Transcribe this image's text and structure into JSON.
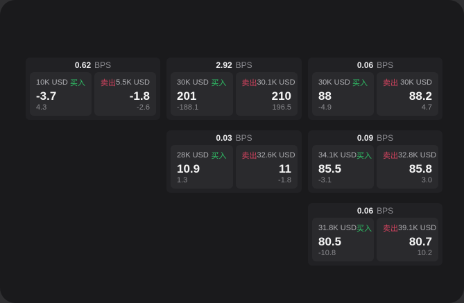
{
  "labels": {
    "bps_unit": "BPS",
    "buy": "买入",
    "sell": "卖出"
  },
  "colors": {
    "buy_green": "#2fbf66",
    "sell_red": "#d0435e"
  },
  "cards": [
    {
      "bps": "0.62",
      "buy": {
        "amount": "10K USD",
        "price": "-3.7",
        "delta": "4.3"
      },
      "sell": {
        "amount": "5.5K USD",
        "price": "-1.8",
        "delta": "-2.6"
      }
    },
    {
      "bps": "2.92",
      "buy": {
        "amount": "30K USD",
        "price": "201",
        "delta": "-188.1"
      },
      "sell": {
        "amount": "30.1K USD",
        "price": "210",
        "delta": "196.5"
      }
    },
    {
      "bps": "0.06",
      "buy": {
        "amount": "30K USD",
        "price": "88",
        "delta": "-4.9"
      },
      "sell": {
        "amount": "30K USD",
        "price": "88.2",
        "delta": "4.7"
      }
    },
    {
      "bps": "0.03",
      "buy": {
        "amount": "28K USD",
        "price": "10.9",
        "delta": "1.3"
      },
      "sell": {
        "amount": "32.6K USD",
        "price": "11",
        "delta": "-1.8"
      }
    },
    {
      "bps": "0.09",
      "buy": {
        "amount": "34.1K USD",
        "price": "85.5",
        "delta": "-3.1"
      },
      "sell": {
        "amount": "32.8K USD",
        "price": "85.8",
        "delta": "3.0"
      }
    },
    {
      "bps": "0.06",
      "buy": {
        "amount": "31.8K USD",
        "price": "80.5",
        "delta": "-10.8"
      },
      "sell": {
        "amount": "39.1K USD",
        "price": "80.7",
        "delta": "10.2"
      }
    }
  ]
}
